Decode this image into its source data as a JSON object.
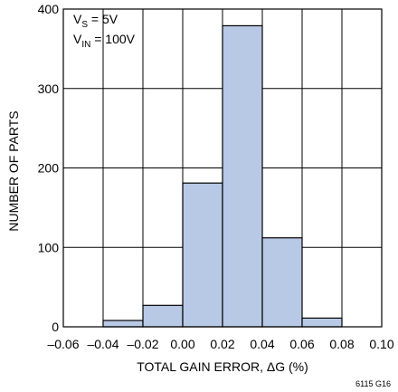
{
  "chart_data": {
    "type": "bar",
    "title": "",
    "xlabel": "TOTAL GAIN ERROR, ΔG (%)",
    "ylabel": "NUMBER OF PARTS",
    "xlim": [
      -0.06,
      0.1
    ],
    "ylim": [
      0,
      400
    ],
    "x_ticks": [
      "–0.06",
      "–0.04",
      "–0.02",
      "0.00",
      "0.02",
      "0.04",
      "0.06",
      "0.08",
      "0.10"
    ],
    "y_ticks": [
      "0",
      "100",
      "200",
      "300",
      "400"
    ],
    "grid": true,
    "bins": [
      {
        "x0": -0.04,
        "x1": -0.02,
        "value": 8
      },
      {
        "x0": -0.02,
        "x1": 0.0,
        "value": 27
      },
      {
        "x0": 0.0,
        "x1": 0.02,
        "value": 181
      },
      {
        "x0": 0.02,
        "x1": 0.04,
        "value": 379
      },
      {
        "x0": 0.04,
        "x1": 0.06,
        "value": 112
      },
      {
        "x0": 0.06,
        "x1": 0.08,
        "value": 11
      }
    ],
    "annotations": {
      "vs_main": "V",
      "vs_sub": "S",
      "vs_value": " = 5V",
      "vin_main": "V",
      "vin_sub": "IN",
      "vin_value": " = 100V"
    },
    "figure_id": "6115 G16",
    "colors": {
      "bar_fill": "#b8c9e6",
      "bar_stroke": "#000000",
      "grid": "#000000"
    }
  }
}
